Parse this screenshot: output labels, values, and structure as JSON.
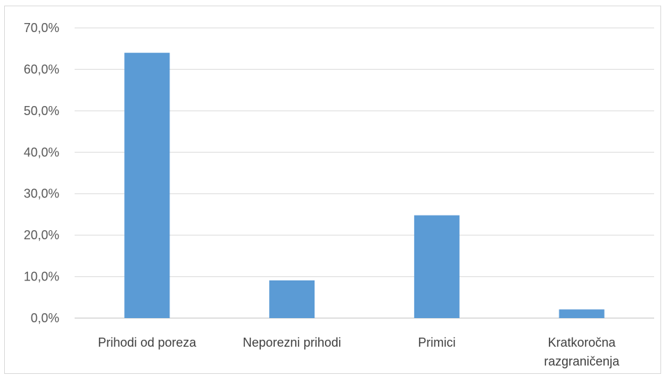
{
  "chart_data": {
    "type": "bar",
    "categories": [
      "Prihodi od poreza",
      "Neporezni prihodi",
      "Primici",
      "Kratkoročna razgraničenja"
    ],
    "category_label_lines": [
      [
        "Prihodi od poreza"
      ],
      [
        "Neporezni prihodi"
      ],
      [
        "Primici"
      ],
      [
        "Kratkoročna",
        "razgraničenja"
      ]
    ],
    "values": [
      64.0,
      9.1,
      24.8,
      2.1
    ],
    "ylim": [
      0,
      70
    ],
    "yticks": [
      0,
      10,
      20,
      30,
      40,
      50,
      60,
      70
    ],
    "ytick_labels": [
      "0,0%",
      "10,0%",
      "20,0%",
      "30,0%",
      "40,0%",
      "50,0%",
      "60,0%",
      "70,0%"
    ],
    "bar_color": "#5b9bd5",
    "grid": true,
    "title": "",
    "xlabel": "",
    "ylabel": ""
  }
}
